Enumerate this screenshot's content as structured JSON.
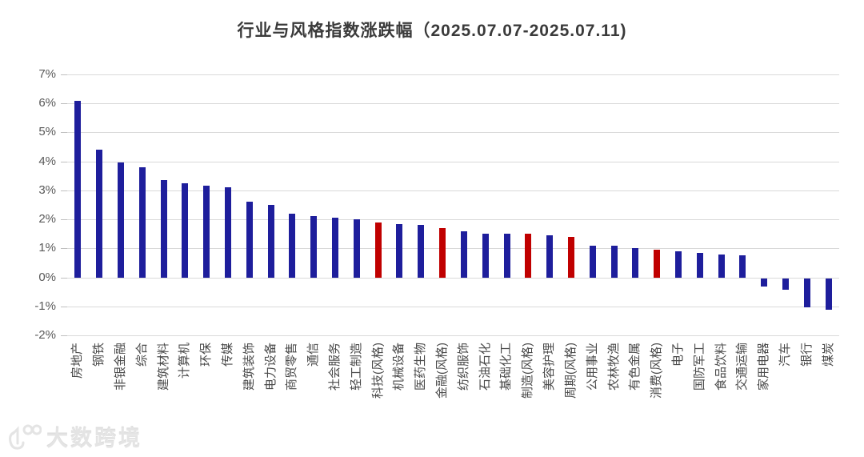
{
  "chart_data": {
    "type": "bar",
    "title": "行业与风格指数涨跌幅（2025.07.07-2025.07.11)",
    "xlabel": "",
    "ylabel": "",
    "unit": "%",
    "ylim": [
      -2,
      7
    ],
    "ytick_labels": [
      "7%",
      "6%",
      "5%",
      "4%",
      "3%",
      "2%",
      "1%",
      "0%",
      "-1%",
      "-2%"
    ],
    "grid": "horizontal",
    "legend": "none",
    "colors": {
      "industry": "#1e1e9c",
      "style": "#c00000",
      "gridline": "#d9d9d9",
      "axis_text": "#595959"
    },
    "points": [
      {
        "label": "房地产",
        "value": 6.1,
        "kind": "industry"
      },
      {
        "label": "钢铁",
        "value": 4.4,
        "kind": "industry"
      },
      {
        "label": "非银金融",
        "value": 3.95,
        "kind": "industry"
      },
      {
        "label": "综合",
        "value": 3.8,
        "kind": "industry"
      },
      {
        "label": "建筑材料",
        "value": 3.35,
        "kind": "industry"
      },
      {
        "label": "计算机",
        "value": 3.25,
        "kind": "industry"
      },
      {
        "label": "环保",
        "value": 3.15,
        "kind": "industry"
      },
      {
        "label": "传媒",
        "value": 3.1,
        "kind": "industry"
      },
      {
        "label": "建筑装饰",
        "value": 2.6,
        "kind": "industry"
      },
      {
        "label": "电力设备",
        "value": 2.5,
        "kind": "industry"
      },
      {
        "label": "商贸零售",
        "value": 2.2,
        "kind": "industry"
      },
      {
        "label": "通信",
        "value": 2.1,
        "kind": "industry"
      },
      {
        "label": "社会服务",
        "value": 2.05,
        "kind": "industry"
      },
      {
        "label": "轻工制造",
        "value": 2.0,
        "kind": "industry"
      },
      {
        "label": "科技(风格)",
        "value": 1.9,
        "kind": "style"
      },
      {
        "label": "机械设备",
        "value": 1.85,
        "kind": "industry"
      },
      {
        "label": "医药生物",
        "value": 1.8,
        "kind": "industry"
      },
      {
        "label": "金融(风格)",
        "value": 1.7,
        "kind": "style"
      },
      {
        "label": "纺织服饰",
        "value": 1.6,
        "kind": "industry"
      },
      {
        "label": "石油石化",
        "value": 1.5,
        "kind": "industry"
      },
      {
        "label": "基础化工",
        "value": 1.5,
        "kind": "industry"
      },
      {
        "label": "制造(风格)",
        "value": 1.5,
        "kind": "style"
      },
      {
        "label": "美容护理",
        "value": 1.45,
        "kind": "industry"
      },
      {
        "label": "周期(风格)",
        "value": 1.4,
        "kind": "style"
      },
      {
        "label": "公用事业",
        "value": 1.1,
        "kind": "industry"
      },
      {
        "label": "农林牧渔",
        "value": 1.1,
        "kind": "industry"
      },
      {
        "label": "有色金属",
        "value": 1.0,
        "kind": "industry"
      },
      {
        "label": "消费(风格)",
        "value": 0.95,
        "kind": "style"
      },
      {
        "label": "电子",
        "value": 0.9,
        "kind": "industry"
      },
      {
        "label": "国防军工",
        "value": 0.85,
        "kind": "industry"
      },
      {
        "label": "食品饮料",
        "value": 0.8,
        "kind": "industry"
      },
      {
        "label": "交通运输",
        "value": 0.75,
        "kind": "industry"
      },
      {
        "label": "家用电器",
        "value": -0.3,
        "kind": "industry"
      },
      {
        "label": "汽车",
        "value": -0.4,
        "kind": "industry"
      },
      {
        "label": "银行",
        "value": -1.0,
        "kind": "industry"
      },
      {
        "label": "煤炭",
        "value": -1.1,
        "kind": "industry"
      }
    ]
  },
  "watermark": {
    "text": "大数跨境",
    "logo": "100-logo"
  }
}
